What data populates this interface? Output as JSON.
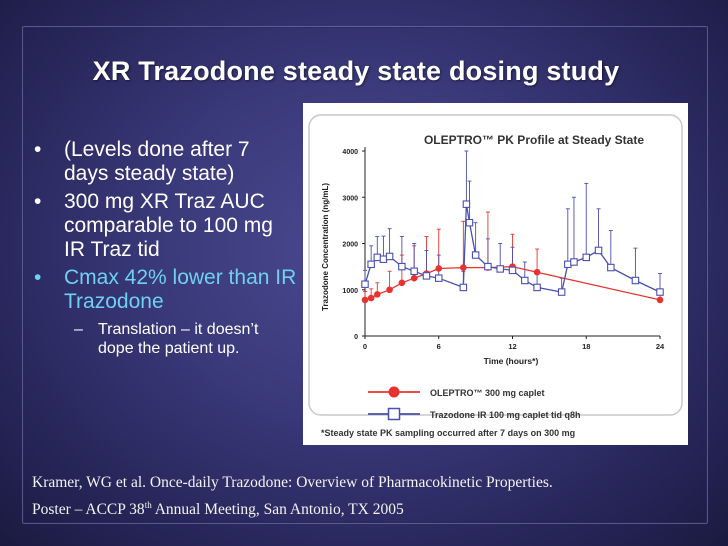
{
  "slide": {
    "title": "XR Trazodone steady state dosing study",
    "bullets": [
      {
        "text": "(Levels done after 7 days steady state)",
        "dot": "•"
      },
      {
        "text": "300 mg XR Traz AUC comparable to 100 mg IR Traz tid",
        "dot": "•"
      },
      {
        "text": "Cmax 42% lower than IR Trazodone",
        "dot": "•",
        "highlight": "#6fd0f0"
      }
    ],
    "sub_bullet": {
      "dash": "–",
      "text": "Translation – it doesn’t dope the patient up."
    },
    "citation": {
      "line1": "Kramer, WG et al. Once-daily Trazodone: Overview of Pharmacokinetic Properties.",
      "line2_pre": "Poster – ACCP 38",
      "line2_sup": "th",
      "line2_post": " Annual Meeting, San Antonio, TX 2005"
    }
  },
  "chart_data": {
    "type": "line",
    "title": "OLEPTRO™ PK Profile at Steady State",
    "xlabel": "Time (hours*)",
    "ylabel": "Trazodone Concentration (ng/mL)",
    "xlim": [
      0,
      24
    ],
    "ylim": [
      0,
      4000
    ],
    "xticks": [
      0,
      6,
      12,
      18,
      24
    ],
    "yticks": [
      0,
      1000,
      2000,
      3000,
      4000
    ],
    "grid": false,
    "legend_position": "bottom",
    "footnote": "*Steady state PK sampling occurred after 7 days on 300 mg",
    "series": [
      {
        "name": "OLEPTRO™ 300 mg caplet",
        "color": "#e8322e",
        "marker": "circle",
        "x": [
          0,
          0.5,
          1,
          2,
          3,
          4,
          5,
          6,
          8,
          10,
          12,
          14,
          24
        ],
        "y": [
          780,
          820,
          900,
          1000,
          1150,
          1250,
          1350,
          1460,
          1480,
          1480,
          1500,
          1380,
          780
        ],
        "err": [
          180,
          200,
          250,
          400,
          600,
          700,
          800,
          850,
          1000,
          1200,
          700,
          500,
          200
        ]
      },
      {
        "name": "Trazodone IR 100 mg caplet tid q8h",
        "color": "#4a4fb0",
        "marker": "square",
        "x": [
          0,
          0.5,
          1,
          1.5,
          2,
          3,
          4,
          5,
          6,
          8,
          8.25,
          8.5,
          9,
          10,
          11,
          12,
          13,
          14,
          16,
          16.5,
          17,
          18,
          19,
          20,
          22,
          24
        ],
        "y": [
          1120,
          1550,
          1700,
          1660,
          1720,
          1500,
          1400,
          1300,
          1250,
          1050,
          2850,
          2450,
          1750,
          1500,
          1450,
          1420,
          1200,
          1050,
          950,
          1550,
          1600,
          1700,
          1850,
          1480,
          1200,
          950
        ],
        "err": [
          300,
          400,
          450,
          500,
          600,
          650,
          600,
          550,
          500,
          350,
          1150,
          900,
          700,
          600,
          550,
          500,
          400,
          350,
          300,
          1200,
          1400,
          1600,
          900,
          800,
          700,
          400
        ]
      }
    ]
  }
}
